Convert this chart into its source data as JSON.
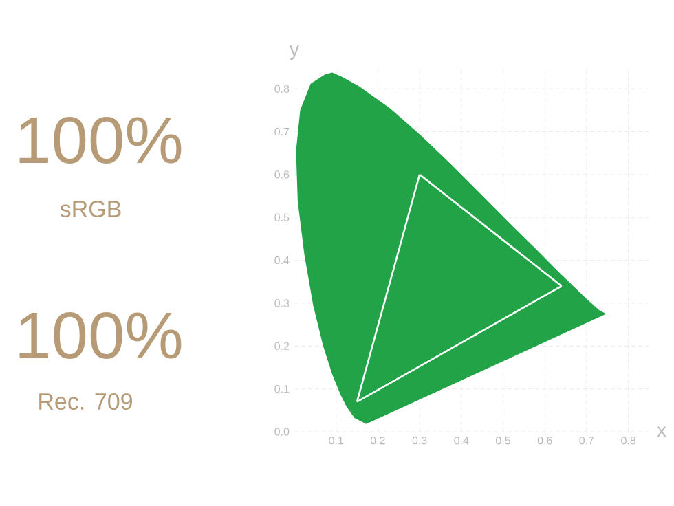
{
  "chart_data": {
    "type": "line",
    "xlabel": "x",
    "ylabel": "y",
    "xlim": [
      0,
      0.85
    ],
    "ylim": [
      0,
      0.85
    ],
    "xticks": [
      0.1,
      0.2,
      0.3,
      0.4,
      0.5,
      0.6,
      0.7,
      0.8
    ],
    "yticks": [
      {
        "value": 0,
        "label": "0.0"
      },
      0.1,
      0.2,
      0.3,
      0.4,
      0.5,
      0.6,
      0.7,
      0.8
    ],
    "grid": true,
    "annotations": [
      "100%",
      "sRGB",
      "100%",
      "Rec. 709"
    ],
    "series": [
      {
        "type": "area",
        "color": "#22a347",
        "x": [
          0.172,
          0.144,
          0.124,
          0.11,
          0.091,
          0.069,
          0.045,
          0.024,
          0.008,
          0.004,
          0.014,
          0.039,
          0.074,
          0.091,
          0.114,
          0.155,
          0.23,
          0.302,
          0.374,
          0.446,
          0.515,
          0.58,
          0.633,
          0.7,
          0.73,
          0.747
        ],
        "values": [
          0.018,
          0.032,
          0.06,
          0.088,
          0.133,
          0.2,
          0.295,
          0.413,
          0.538,
          0.655,
          0.75,
          0.812,
          0.834,
          0.838,
          0.828,
          0.806,
          0.754,
          0.692,
          0.625,
          0.555,
          0.487,
          0.425,
          0.373,
          0.31,
          0.284,
          0.275
        ]
      },
      {
        "color": "#ffffff",
        "x": [
          0.15,
          0.3
        ],
        "values": [
          0.07,
          0.6
        ]
      },
      {
        "color": "#ffffff",
        "x": [
          0.3,
          0.64
        ],
        "values": [
          0.6,
          0.34
        ]
      },
      {
        "color": "#ffffff",
        "x": [
          0.15,
          0.64
        ],
        "values": [
          0.07,
          0.34
        ]
      }
    ]
  }
}
